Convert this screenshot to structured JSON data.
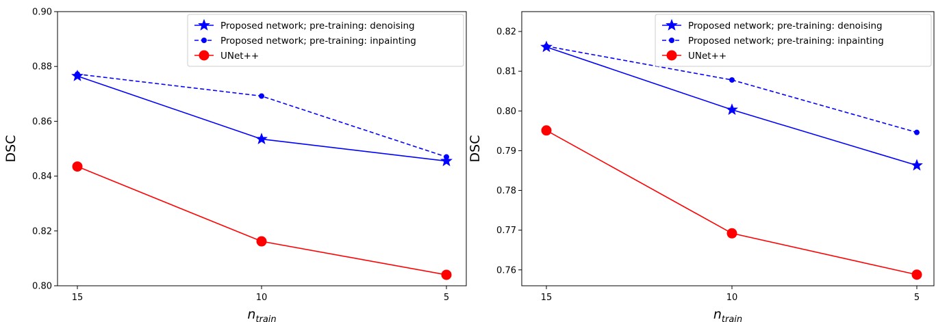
{
  "chart_data": [
    {
      "type": "line",
      "xlabel": "n",
      "xlabel_sub": "train",
      "ylabel": "DSC",
      "ylim": [
        0.8,
        0.9
      ],
      "yticks": [
        "0.80",
        "0.82",
        "0.84",
        "0.86",
        "0.88",
        "0.90"
      ],
      "categories": [
        "15",
        "10",
        "5"
      ],
      "grid": false,
      "legend_position": "top-right",
      "series": [
        {
          "name": "Proposed network; pre-training: denoising",
          "values": [
            0.8765,
            0.8535,
            0.8455
          ],
          "color": "#0000ff",
          "marker": "star",
          "dash": "solid"
        },
        {
          "name": "Proposed network; pre-training: inpainting",
          "values": [
            0.8772,
            0.8692,
            0.847
          ],
          "color": "#0000ff",
          "marker": "circle-small",
          "dash": "dashed"
        },
        {
          "name": "UNet++",
          "values": [
            0.8435,
            0.8162,
            0.804
          ],
          "color": "#ff0000",
          "marker": "circle-large",
          "dash": "solid"
        }
      ]
    },
    {
      "type": "line",
      "xlabel": "n",
      "xlabel_sub": "train",
      "ylabel": "DSC",
      "ylim": [
        0.756,
        0.825
      ],
      "yticks": [
        "0.76",
        "0.77",
        "0.78",
        "0.79",
        "0.80",
        "0.81",
        "0.82"
      ],
      "categories": [
        "15",
        "10",
        "5"
      ],
      "grid": false,
      "legend_position": "top-right",
      "series": [
        {
          "name": "Proposed network; pre-training: denoising",
          "values": [
            0.8161,
            0.8003,
            0.7863
          ],
          "color": "#0000ff",
          "marker": "star",
          "dash": "solid"
        },
        {
          "name": "Proposed network; pre-training: inpainting",
          "values": [
            0.8163,
            0.8078,
            0.7946
          ],
          "color": "#0000ff",
          "marker": "circle-small",
          "dash": "dashed"
        },
        {
          "name": "UNet++",
          "values": [
            0.7951,
            0.7692,
            0.7588
          ],
          "color": "#ff0000",
          "marker": "circle-large",
          "dash": "solid"
        }
      ]
    }
  ]
}
